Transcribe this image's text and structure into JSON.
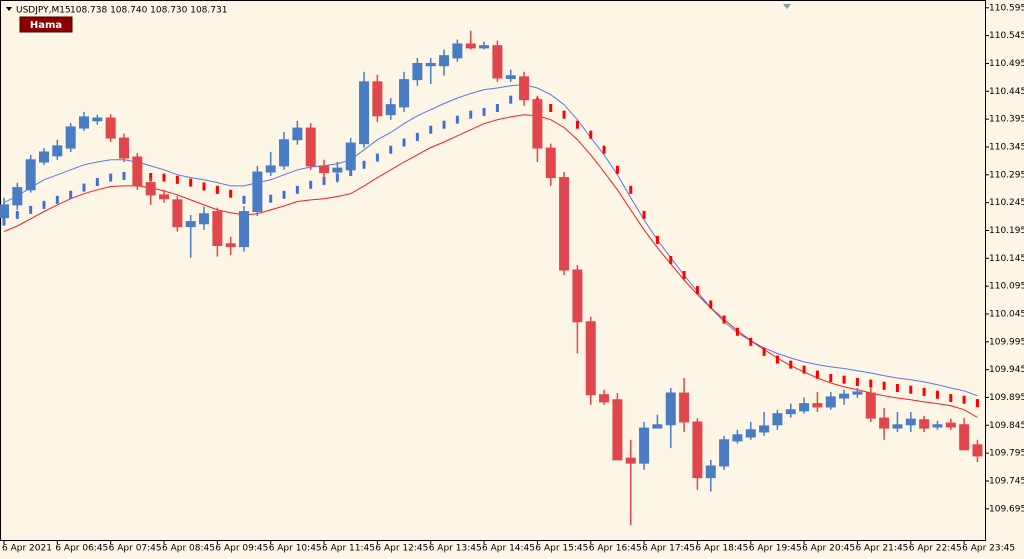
{
  "chart_data": {
    "type": "candlestick",
    "title": "USDJPY,M15",
    "quote": "108.738 108.740 108.730 108.731",
    "button": "Hama",
    "up_color": "#4a7cc4",
    "down_color": "#e0474c",
    "background": "#fdf5e6",
    "categories": [
      "6 Apr 2021",
      null,
      null,
      null,
      "6 Apr 06:45",
      null,
      null,
      null,
      "6 Apr 07:45",
      null,
      null,
      null,
      "6 Apr 08:45",
      null,
      null,
      null,
      "6 Apr 09:45",
      null,
      null,
      null,
      "6 Apr 10:45",
      null,
      null,
      null,
      "6 Apr 11:45",
      null,
      null,
      null,
      "6 Apr 12:45",
      null,
      null,
      null,
      "6 Apr 13:45",
      null,
      null,
      null,
      "6 Apr 14:45",
      null,
      null,
      null,
      "6 Apr 15:45",
      null,
      null,
      null,
      "6 Apr 16:45",
      null,
      null,
      null,
      "6 Apr 17:45",
      null,
      null,
      null,
      "6 Apr 18:45",
      null,
      null,
      null,
      "6 Apr 19:45",
      null,
      null,
      null,
      "6 Apr 20:45",
      null,
      null,
      null,
      "6 Apr 21:45",
      null,
      null,
      null,
      "6 Apr 22:45",
      null,
      null,
      null,
      "6 Apr 23:45",
      null
    ],
    "open": [
      110.218,
      110.241,
      110.268,
      110.318,
      110.329,
      110.343,
      110.379,
      110.392,
      110.397,
      110.361,
      110.327,
      110.281,
      110.259,
      110.25,
      110.202,
      110.207,
      110.229,
      110.171,
      110.166,
      110.229,
      110.3,
      110.311,
      110.358,
      110.379,
      110.311,
      110.3,
      110.304,
      110.351,
      110.462,
      110.403,
      110.417,
      110.466,
      110.491,
      110.491,
      110.505,
      110.53,
      110.523,
      110.527,
      110.468,
      110.471,
      110.43,
      110.343,
      110.29,
      110.124,
      110.031,
      109.9,
      109.891,
      109.786,
      109.777,
      109.84,
      109.846,
      109.903,
      109.851,
      109.751,
      109.772,
      109.817,
      109.824,
      109.833,
      109.846,
      109.866,
      109.871,
      109.884,
      109.878,
      109.894,
      109.901,
      109.903,
      109.858,
      109.84,
      109.846,
      109.855,
      109.842,
      109.849,
      109.846,
      109.81
    ],
    "high": [
      110.254,
      110.281,
      110.331,
      110.343,
      110.358,
      110.388,
      110.408,
      110.403,
      110.404,
      110.369,
      110.334,
      110.29,
      110.268,
      110.257,
      110.223,
      110.238,
      110.236,
      110.184,
      110.239,
      110.311,
      110.336,
      110.372,
      110.392,
      110.388,
      110.322,
      110.318,
      110.361,
      110.48,
      110.475,
      110.433,
      110.48,
      110.505,
      110.505,
      110.52,
      110.538,
      110.554,
      110.534,
      110.536,
      110.484,
      110.48,
      110.437,
      110.351,
      110.3,
      110.133,
      110.04,
      109.909,
      109.903,
      109.819,
      109.851,
      109.864,
      109.912,
      109.93,
      109.858,
      109.783,
      109.826,
      109.837,
      109.851,
      109.869,
      109.873,
      109.884,
      109.895,
      109.905,
      109.905,
      109.909,
      109.912,
      109.912,
      109.876,
      109.869,
      109.869,
      109.862,
      109.853,
      109.857,
      109.858,
      109.819
    ],
    "low": [
      110.205,
      110.232,
      110.263,
      110.313,
      110.322,
      110.336,
      110.374,
      110.385,
      110.354,
      110.318,
      110.268,
      110.241,
      110.245,
      110.193,
      110.146,
      110.196,
      110.148,
      110.151,
      110.157,
      110.221,
      110.293,
      110.304,
      110.349,
      110.304,
      110.286,
      110.281,
      110.295,
      110.344,
      110.39,
      110.394,
      110.408,
      110.455,
      110.458,
      110.473,
      110.498,
      110.52,
      110.52,
      110.462,
      110.462,
      110.419,
      110.318,
      110.275,
      110.115,
      109.974,
      109.882,
      109.882,
      109.783,
      109.666,
      109.765,
      109.84,
      109.804,
      109.833,
      109.729,
      109.726,
      109.765,
      109.812,
      109.819,
      109.826,
      109.837,
      109.859,
      109.866,
      109.869,
      109.873,
      109.882,
      109.894,
      109.851,
      109.819,
      109.833,
      109.833,
      109.833,
      109.837,
      109.837,
      109.801,
      109.779
    ],
    "close": [
      110.241,
      110.272,
      110.322,
      110.336,
      110.347,
      110.381,
      110.399,
      110.397,
      110.361,
      110.325,
      110.275,
      110.259,
      110.252,
      110.202,
      110.211,
      110.225,
      110.168,
      110.166,
      110.229,
      110.3,
      110.311,
      110.358,
      110.379,
      110.311,
      110.299,
      110.307,
      110.352,
      110.462,
      110.401,
      110.421,
      110.466,
      110.495,
      110.495,
      110.509,
      110.53,
      110.523,
      110.527,
      110.469,
      110.473,
      110.43,
      110.343,
      110.29,
      110.124,
      110.031,
      109.9,
      109.887,
      109.783,
      109.777,
      109.84,
      109.846,
      109.903,
      109.851,
      109.751,
      109.772,
      109.819,
      109.828,
      109.837,
      109.844,
      109.866,
      109.873,
      109.884,
      109.878,
      109.896,
      109.901,
      109.905,
      109.858,
      109.84,
      109.846,
      109.856,
      109.84,
      109.846,
      109.842,
      109.801,
      109.79
    ],
    "series": [
      {
        "type": "line",
        "color": "#5a78e6",
        "values": [
          110.245,
          110.257,
          110.272,
          110.286,
          110.295,
          110.304,
          110.313,
          110.318,
          110.322,
          110.322,
          110.318,
          110.311,
          110.304,
          110.295,
          110.29,
          110.286,
          110.281,
          110.275,
          110.275,
          110.281,
          110.286,
          110.295,
          110.304,
          110.309,
          110.311,
          110.315,
          110.322,
          110.34,
          110.358,
          110.371,
          110.387,
          110.401,
          110.412,
          110.423,
          110.433,
          110.441,
          110.448,
          110.451,
          110.455,
          110.457,
          110.451,
          110.439,
          110.421,
          110.394,
          110.362,
          110.331,
          110.295,
          110.254,
          110.214,
          110.178,
          110.146,
          110.115,
          110.085,
          110.056,
          110.031,
          110.011,
          109.997,
          109.984,
          109.974,
          109.966,
          109.959,
          109.954,
          109.95,
          109.947,
          109.943,
          109.939,
          109.934,
          109.93,
          109.927,
          109.923,
          109.918,
          109.912,
          109.907,
          109.898
        ]
      },
      {
        "type": "line",
        "color": "#f02020",
        "values": [
          110.193,
          110.203,
          110.216,
          110.229,
          110.241,
          110.252,
          110.261,
          110.268,
          110.274,
          110.275,
          110.275,
          110.272,
          110.266,
          110.259,
          110.25,
          110.241,
          110.232,
          110.227,
          110.223,
          110.225,
          110.232,
          110.239,
          110.247,
          110.25,
          110.252,
          110.256,
          110.261,
          110.275,
          110.29,
          110.304,
          110.318,
          110.331,
          110.344,
          110.354,
          110.365,
          110.376,
          110.387,
          110.394,
          110.399,
          110.403,
          110.401,
          110.394,
          110.38,
          110.358,
          110.331,
          110.3,
          110.268,
          110.232,
          110.196,
          110.164,
          110.135,
          110.106,
          110.08,
          110.056,
          110.035,
          110.015,
          109.997,
          109.981,
          109.966,
          109.952,
          109.941,
          109.93,
          109.921,
          109.914,
          109.909,
          109.903,
          109.898,
          109.894,
          109.891,
          109.887,
          109.884,
          109.88,
          109.873,
          109.859
        ]
      },
      {
        "type": "dots",
        "color": "#3e6fd8",
        "values": [
          110.211,
          110.223,
          110.232,
          110.241,
          110.25,
          110.259,
          110.272,
          110.282,
          110.29,
          110.293,
          110.293,
          null,
          null,
          null,
          null,
          null,
          null,
          null,
          110.25,
          110.247,
          110.252,
          110.259,
          110.268,
          110.277,
          110.284,
          110.29,
          110.3,
          110.313,
          110.326,
          110.34,
          110.353,
          110.363,
          110.376,
          110.385,
          110.394,
          110.403,
          110.408,
          110.415,
          110.43,
          110.437,
          null,
          null,
          null,
          null,
          null,
          null,
          null,
          null,
          null,
          null,
          null,
          null,
          null,
          null,
          null,
          null,
          null,
          null,
          null,
          null,
          null,
          null,
          null,
          null,
          null,
          null,
          null,
          null,
          null,
          null,
          null,
          null,
          null,
          null
        ]
      },
      {
        "type": "dots",
        "color": "#ff0000",
        "values": [
          null,
          null,
          null,
          null,
          null,
          null,
          null,
          null,
          null,
          null,
          null,
          110.291,
          110.29,
          110.286,
          110.281,
          110.274,
          110.268,
          110.261,
          null,
          null,
          null,
          null,
          null,
          null,
          null,
          null,
          null,
          null,
          null,
          null,
          null,
          null,
          null,
          null,
          null,
          null,
          null,
          null,
          null,
          null,
          110.426,
          110.415,
          110.403,
          110.385,
          110.367,
          110.34,
          110.304,
          110.268,
          110.223,
          110.178,
          110.142,
          110.115,
          110.088,
          110.062,
          110.035,
          110.013,
          109.995,
          109.977,
          109.963,
          109.954,
          109.945,
          109.936,
          109.93,
          109.927,
          109.923,
          109.92,
          109.916,
          109.912,
          109.909,
          109.905,
          109.9,
          109.894,
          109.891,
          109.885
        ]
      }
    ],
    "ylim": [
      109.639,
      110.609
    ],
    "yticks": [
      110.595,
      110.545,
      110.495,
      110.445,
      110.395,
      110.345,
      110.295,
      110.245,
      110.195,
      110.145,
      110.095,
      110.045,
      109.995,
      109.945,
      109.895,
      109.845,
      109.795,
      109.745,
      109.695
    ]
  }
}
